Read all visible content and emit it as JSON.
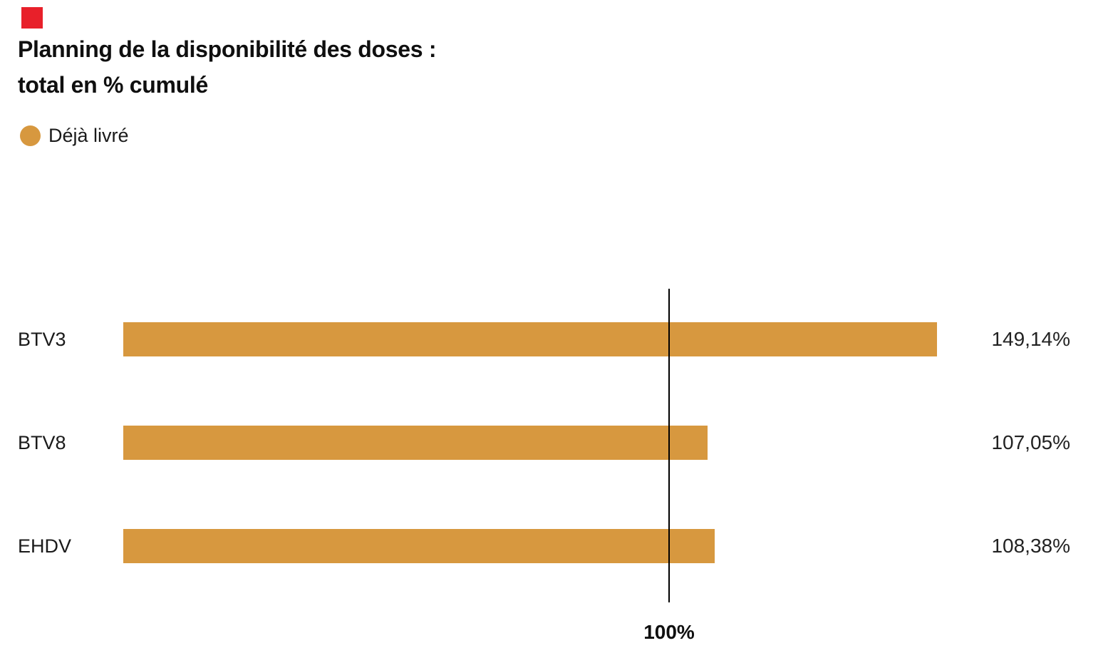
{
  "corner_marker": {
    "color": "#e8202a"
  },
  "title": {
    "line1": "Planning de la disponibilité des doses :",
    "line2": "total en % cumulé"
  },
  "legend": {
    "label": "Déjà livré"
  },
  "chart_data": {
    "type": "bar",
    "orientation": "horizontal",
    "title": "Planning de la disponibilité des doses : total en % cumulé",
    "legend_entries": [
      "Déjà livré"
    ],
    "legend_position": "top-left",
    "categories": [
      "BTV3",
      "BTV8",
      "EHDV"
    ],
    "series": [
      {
        "name": "Déjà livré",
        "values": [
          149.14,
          107.05,
          108.38
        ]
      }
    ],
    "value_labels": [
      "149,14%",
      "107,05%",
      "108,38%"
    ],
    "reference_line": {
      "value": 100,
      "label": "100%"
    },
    "xlim": [
      0,
      156
    ],
    "grid": false,
    "bar_color": "#d7983f",
    "text_color": "#1a1a1a",
    "decimal_separator": ",",
    "value_suffix": "%"
  }
}
